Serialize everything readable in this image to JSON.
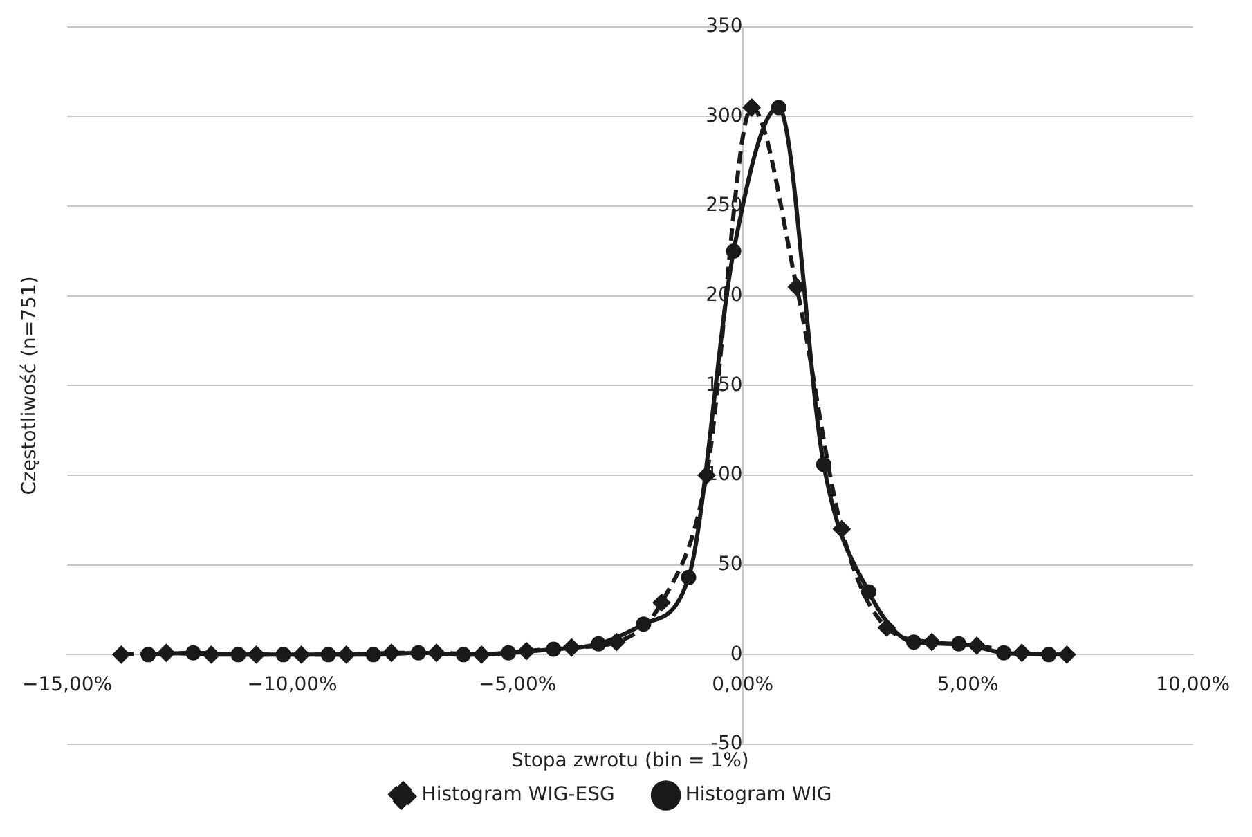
{
  "chart_data": {
    "type": "line",
    "xlabel": "Stopa zwrotu (bin = 1%)",
    "ylabel": "Częstotliwość (n=751)",
    "xlim": [
      -15,
      10
    ],
    "xticks": [
      {
        "value": -15,
        "label": "−15,00%"
      },
      {
        "value": -10,
        "label": "−10,00%"
      },
      {
        "value": -5,
        "label": "−5,00%"
      },
      {
        "value": 0,
        "label": "0,00%"
      },
      {
        "value": 5,
        "label": "5,00%"
      },
      {
        "value": 10,
        "label": "10,00%"
      }
    ],
    "ylim": [
      -50,
      350
    ],
    "yticks": [
      {
        "value": -50,
        "label": "-50"
      },
      0,
      50,
      100,
      150,
      200,
      250,
      300,
      350
    ],
    "grid": "y",
    "legend": "bottom",
    "series": [
      {
        "name": "Histogram WIG-ESG",
        "color": "#1a1a1a",
        "marker": "diamond",
        "line_style": "dashed",
        "x": [
          -13.8,
          -12.8,
          -11.8,
          -10.8,
          -9.8,
          -8.8,
          -7.8,
          -6.8,
          -5.8,
          -4.8,
          -3.8,
          -2.8,
          -1.8,
          -0.8,
          0.2,
          1.2,
          2.2,
          3.2,
          4.2,
          5.2,
          6.2,
          7.2
        ],
        "values": [
          0,
          1,
          0,
          0,
          0,
          0,
          1,
          1,
          0,
          2,
          4,
          7,
          29,
          100,
          305,
          205,
          70,
          15,
          7,
          5,
          1,
          0
        ]
      },
      {
        "name": "Histogram WIG",
        "color": "#1a1a1a",
        "marker": "circle",
        "line_style": "solid",
        "x": [
          -13.2,
          -12.2,
          -11.2,
          -10.2,
          -9.2,
          -8.2,
          -7.2,
          -6.2,
          -5.2,
          -4.2,
          -3.2,
          -2.2,
          -1.2,
          -0.2,
          0.8,
          1.8,
          2.8,
          3.8,
          4.8,
          5.8,
          6.8
        ],
        "values": [
          0,
          1,
          0,
          0,
          0,
          0,
          1,
          0,
          1,
          3,
          6,
          17,
          43,
          225,
          305,
          106,
          35,
          7,
          6,
          1,
          0
        ]
      }
    ]
  }
}
